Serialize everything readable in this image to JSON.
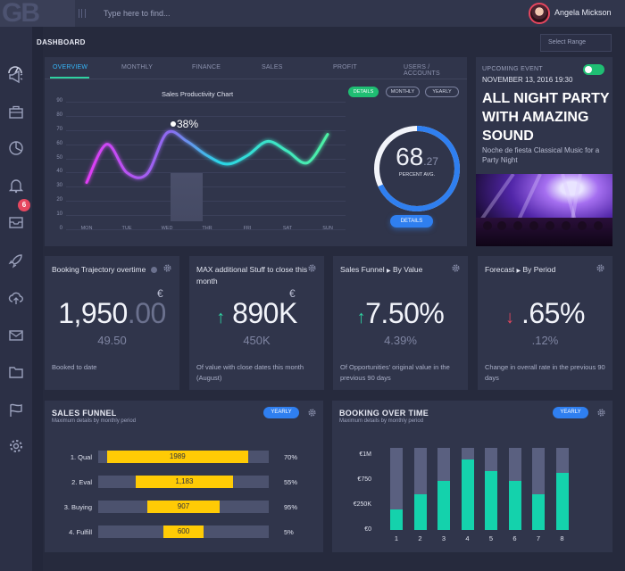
{
  "header": {
    "logo": "GB",
    "search_placeholder": "Type here to find...",
    "user_name": "Angela Mickson"
  },
  "page": {
    "title": "DASHBOARD",
    "select_range": "Select Range"
  },
  "sidebar": {
    "notification_count": "6",
    "icons": [
      "megaphone-icon",
      "briefcase-icon",
      "pie-chart-icon",
      "bell-icon",
      "inbox-icon",
      "rocket-icon",
      "cloud-upload-icon",
      "mail-icon",
      "folder-icon",
      "flag-icon",
      "gear-icon"
    ]
  },
  "tabs": [
    "OVERVIEW",
    "MONTHLY",
    "FINANCE",
    "SALES",
    "PROFIT",
    "USERS / ACCOUNTS"
  ],
  "productivity": {
    "title": "Sales Productivity Chart",
    "filters": [
      "DETAILS",
      "MONTHLY",
      "YEARLY"
    ],
    "peak_label": "38%",
    "avg_value": "68",
    "avg_decimal": ".27",
    "avg_label": "PERCENT AVG.",
    "avg_fraction": 0.68,
    "details_button": "DETAILS"
  },
  "chart_data": {
    "type": "line",
    "categories": [
      "MON",
      "TUE",
      "WED",
      "THR",
      "FRI",
      "SAT",
      "SUN"
    ],
    "yticks": [
      "90",
      "80",
      "70",
      "60",
      "50",
      "40",
      "30",
      "20",
      "10",
      "0"
    ],
    "ylim": [
      0,
      90
    ],
    "highlight_category": "WED",
    "series": [
      {
        "points": [
          [
            0,
            33
          ],
          [
            0.5,
            60
          ],
          [
            1,
            40
          ],
          [
            1.5,
            39
          ],
          [
            2,
            68
          ],
          [
            2.5,
            62
          ],
          [
            3,
            52
          ],
          [
            3.5,
            46
          ],
          [
            4,
            52
          ],
          [
            4.5,
            62
          ],
          [
            5,
            55
          ],
          [
            5.5,
            47
          ],
          [
            6,
            67
          ]
        ]
      }
    ]
  },
  "event": {
    "label": "UPCOMING EVENT",
    "date": "NOVEMBER 13, 2016 19:30",
    "title": "ALL NIGHT PARTY WITH AMAZING SOUND",
    "subtitle": "Noche de fiesta Classical Music for a Party Night"
  },
  "kpis": [
    {
      "title": "Booking Trajectory overtime",
      "value_main": "1,950",
      "value_fade": ".00",
      "currency": "€",
      "secondary": "49.50",
      "description": "Booked to date"
    },
    {
      "title": "MAX additional Stuff to close this month",
      "value_main": "890K",
      "currency": "€",
      "secondary": "450K",
      "description": "Of value with close dates this month (August)"
    },
    {
      "title": "Sales Funnel",
      "title_suffix": "By Value",
      "value_main": "7.50%",
      "secondary": "4.39%",
      "description": "Of Opportunities' original value in the previous 90 days"
    },
    {
      "title": "Forecast",
      "title_suffix": "By Period",
      "value_main": ".65%",
      "secondary": ".12%",
      "description": "Change in overall rate in the previous 90 days"
    }
  ],
  "funnel": {
    "title": "SALES FUNNEL",
    "subtitle": "Maximum details by monthly period",
    "button": "YEARLY",
    "rows": [
      {
        "label": "1. Qual",
        "value": "1989",
        "pct": "70%",
        "start": 0.05,
        "end": 0.88
      },
      {
        "label": "2. Eval",
        "value": "1,183",
        "pct": "55%",
        "start": 0.22,
        "end": 0.79
      },
      {
        "label": "3. Buying",
        "value": "907",
        "pct": "95%",
        "start": 0.29,
        "end": 0.71
      },
      {
        "label": "4. Fulfill",
        "value": "600",
        "pct": "5%",
        "start": 0.38,
        "end": 0.62
      }
    ]
  },
  "booking": {
    "title": "BOOKING OVER TIME",
    "subtitle": "Maximum details by monthly period",
    "button": "YEARLY",
    "yticks": [
      "€1M",
      "€750",
      "€250K",
      "€0"
    ],
    "x": [
      "1",
      "2",
      "3",
      "4",
      "5",
      "6",
      "7",
      "8"
    ],
    "values": [
      0.25,
      0.43,
      0.6,
      0.86,
      0.72,
      0.6,
      0.44,
      0.7
    ]
  }
}
